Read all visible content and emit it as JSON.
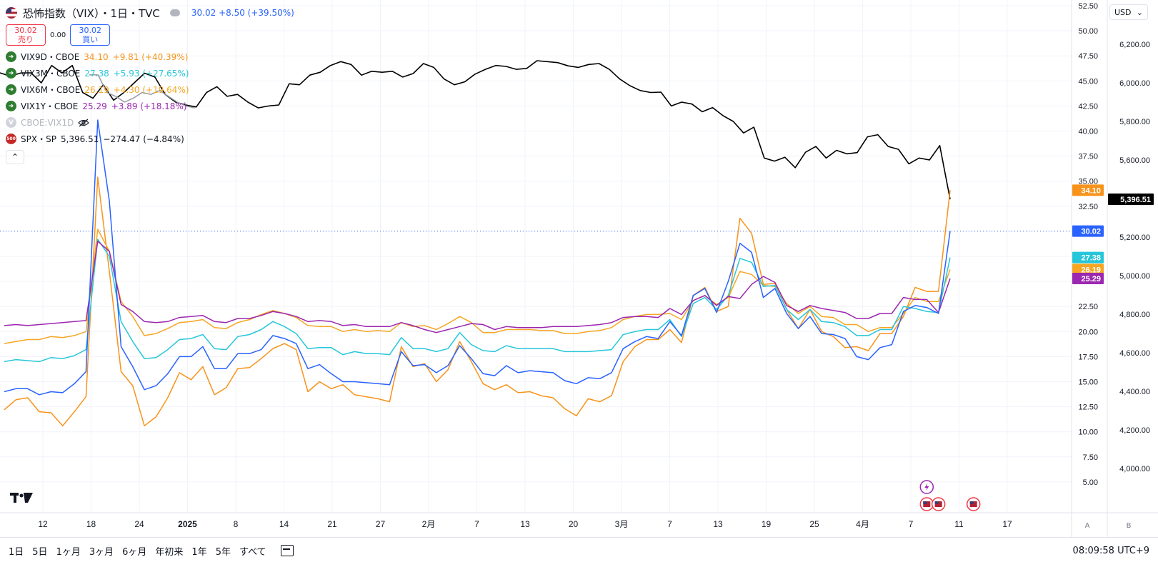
{
  "header": {
    "title": "恐怖指数（VIX）・1日・TVC",
    "last": "30.02",
    "change": "+8.50 (+39.50%)"
  },
  "trade": {
    "sell_price": "30.02",
    "sell_label": "売り",
    "spread": "0.00",
    "buy_price": "30.02",
    "buy_label": "買い"
  },
  "legend": [
    {
      "id": "vix9d",
      "badge": "➜",
      "name": "VIX9D・CBOE",
      "value": "34.10",
      "change": "+9.81 (+40.39%)",
      "color": "#f7931a"
    },
    {
      "id": "vix3m",
      "badge": "➜",
      "name": "VIX3M・CBOE",
      "value": "27.38",
      "change": "+5.93 (+27.65%)",
      "color": "#26c6da"
    },
    {
      "id": "vix6m",
      "badge": "➜",
      "name": "VIX6M・CBOE",
      "value": "26.19",
      "change": "+4.30 (+19.64%)",
      "color": "#f5a623"
    },
    {
      "id": "vix1y",
      "badge": "➜",
      "name": "VIX1Y・CBOE",
      "value": "25.29",
      "change": "+3.89 (+18.18%)",
      "color": "#9c27b0"
    },
    {
      "id": "vix1d",
      "badge": "V",
      "name": "CBOE:VIX1D",
      "value": "",
      "change": "",
      "color": "#b2b5be"
    },
    {
      "id": "spx",
      "badge": "500",
      "name": "SPX・SP",
      "value": "5,396.51",
      "change": "−274.47 (−4.84%)",
      "color": "#131722"
    }
  ],
  "currency": "USD",
  "ranges": [
    "1日",
    "5日",
    "1ヶ月",
    "3ヶ月",
    "6ヶ月",
    "年初来",
    "1年",
    "5年",
    "すべて"
  ],
  "clock": "08:09:58 UTC+9",
  "scale_buttons": {
    "a": "A",
    "b": "B"
  },
  "chart_data": {
    "type": "line",
    "x_ticks": [
      "12",
      "18",
      "24",
      "2025",
      "8",
      "14",
      "21",
      "27",
      "2月",
      "7",
      "13",
      "20",
      "3月",
      "7",
      "13",
      "19",
      "25",
      "4月",
      "7",
      "11",
      "17"
    ],
    "left_axis": {
      "ticks": [
        "52.50",
        "50.00",
        "47.50",
        "45.00",
        "42.50",
        "40.00",
        "37.50",
        "35.00",
        "32.50",
        "30.00",
        "27.50",
        "25.00",
        "22.50",
        "20.00",
        "17.50",
        "15.00",
        "12.50",
        "10.00",
        "7.50",
        "5.00"
      ],
      "range": [
        2.5,
        52.5
      ]
    },
    "right_axis": {
      "ticks": [
        "6,200.00",
        "6,000.00",
        "5,800.00",
        "5,600.00",
        "5,400.00",
        "5,200.00",
        "5,000.00",
        "4,800.00",
        "4,600.00",
        "4,400.00",
        "4,200.00",
        "4,000.00"
      ],
      "range": [
        3800,
        6400
      ]
    },
    "current_line": 30.02,
    "price_labels": [
      {
        "text": "34.10",
        "value": 34.1,
        "color": "#f7931a",
        "axis": "left"
      },
      {
        "text": "30.02",
        "value": 30.02,
        "color": "#2962ff",
        "axis": "left"
      },
      {
        "text": "27.38",
        "value": 27.38,
        "color": "#26c6da",
        "axis": "left"
      },
      {
        "text": "26.19",
        "value": 26.19,
        "color": "#f5a623",
        "axis": "left"
      },
      {
        "text": "25.29",
        "value": 25.29,
        "color": "#9c27b0",
        "axis": "left"
      },
      {
        "text": "5,396.51",
        "value": 5396.51,
        "color": "#000000",
        "axis": "right"
      }
    ],
    "series": [
      {
        "id": "spx",
        "axis": "right",
        "color": "#000000",
        "values": [
          6052,
          6034,
          6051,
          6052,
          6000,
          6090,
          6051,
          6090,
          5950,
          5920,
          5990,
          5910,
          5950,
          6000,
          6050,
          6030,
          5940,
          5900,
          5885,
          5875,
          5950,
          5980,
          5930,
          5940,
          5900,
          5870,
          5880,
          5885,
          5995,
          5990,
          6040,
          6055,
          6090,
          6110,
          6095,
          6040,
          6060,
          6055,
          6060,
          6030,
          6048,
          6100,
          6080,
          6020,
          5990,
          6005,
          6045,
          6070,
          6090,
          6085,
          6070,
          6075,
          6115,
          6110,
          6105,
          6088,
          6080,
          6095,
          6100,
          6070,
          6020,
          5985,
          5960,
          5950,
          5952,
          5880,
          5900,
          5890,
          5850,
          5872,
          5830,
          5800,
          5740,
          5770,
          5610,
          5594,
          5614,
          5560,
          5640,
          5670,
          5610,
          5650,
          5632,
          5638,
          5720,
          5731,
          5670,
          5655,
          5580,
          5610,
          5600,
          5675,
          5396
        ]
      },
      {
        "id": "vix1d",
        "axis": "right",
        "color": "#9598a1",
        "values": [
          null,
          null,
          null,
          null,
          null,
          null,
          null,
          null,
          null,
          null,
          6041,
          6041,
          5950,
          5930,
          5900,
          5920,
          5950,
          5940,
          5960,
          5930,
          5900,
          5880,
          5870
        ]
      },
      {
        "id": "vix9d",
        "axis": "left",
        "color": "#f7931a",
        "values": [
          12.2,
          13.2,
          13.4,
          12.0,
          11.9,
          10.6,
          12.0,
          13.5,
          35.4,
          26.0,
          16.0,
          14.6,
          10.6,
          11.5,
          13.4,
          15.9,
          15.2,
          16.5,
          13.7,
          14.4,
          16.3,
          16.4,
          17.3,
          18.3,
          18.8,
          18.2,
          14.0,
          15.0,
          14.3,
          14.7,
          13.7,
          13.5,
          13.3,
          13.0,
          18.5,
          16.5,
          16.8,
          15.0,
          16.2,
          19.0,
          17.0,
          14.8,
          14.2,
          14.7,
          13.9,
          14.0,
          13.6,
          13.4,
          12.3,
          11.6,
          13.3,
          13.0,
          13.6,
          17.0,
          18.5,
          19.2,
          19.2,
          20.2,
          18.9,
          23.6,
          24.4,
          22.0,
          22.5,
          31.3,
          29.8,
          24.7,
          24.8,
          22.2,
          20.3,
          22.2,
          20.0,
          19.5,
          18.4,
          18.5,
          18.1,
          19.8,
          19.8,
          21.5,
          24.4,
          24.0,
          24.0,
          34.1
        ]
      },
      {
        "id": "vix6m",
        "axis": "left",
        "color": "#f5a623",
        "values": [
          18.8,
          19.0,
          19.2,
          19.2,
          19.5,
          19.4,
          19.6,
          20.0,
          30.2,
          28.0,
          23.0,
          21.5,
          19.6,
          19.8,
          20.3,
          20.9,
          21.0,
          21.2,
          20.4,
          20.3,
          20.9,
          21.2,
          21.7,
          22.1,
          21.8,
          21.4,
          20.6,
          20.5,
          20.5,
          20.0,
          20.2,
          20.0,
          20.1,
          20.0,
          20.9,
          20.5,
          20.6,
          20.2,
          20.8,
          21.5,
          20.9,
          19.9,
          19.9,
          20.2,
          20.2,
          20.2,
          20.1,
          20.1,
          19.8,
          19.8,
          20.0,
          20.1,
          20.4,
          21.2,
          21.5,
          21.7,
          21.7,
          21.8,
          21.2,
          23.1,
          23.6,
          22.7,
          23.4,
          26.0,
          25.7,
          24.6,
          24.5,
          22.8,
          21.8,
          22.5,
          21.5,
          21.4,
          20.7,
          20.7,
          20.0,
          20.4,
          20.4,
          21.8,
          23.4,
          23.0,
          23.0,
          26.19
        ]
      },
      {
        "id": "vix3m",
        "axis": "left",
        "color": "#26c6da",
        "values": [
          17.0,
          17.2,
          17.1,
          17.0,
          17.4,
          17.3,
          17.6,
          18.2,
          29.2,
          27.5,
          21.0,
          19.0,
          17.3,
          17.4,
          18.2,
          19.2,
          19.3,
          19.7,
          18.3,
          18.2,
          19.5,
          19.7,
          20.2,
          21.0,
          20.5,
          19.8,
          18.3,
          18.4,
          18.4,
          17.7,
          18.0,
          17.8,
          17.8,
          17.7,
          19.4,
          18.3,
          18.3,
          18.0,
          18.3,
          19.9,
          18.7,
          18.1,
          18.0,
          18.6,
          18.3,
          18.3,
          18.3,
          18.3,
          18.0,
          18.0,
          18.0,
          18.1,
          18.2,
          19.7,
          20.0,
          20.2,
          20.2,
          21.2,
          19.5,
          22.8,
          23.4,
          22.2,
          23.6,
          27.3,
          26.9,
          24.5,
          24.6,
          22.2,
          21.2,
          22.2,
          21.0,
          20.9,
          20.5,
          19.6,
          19.6,
          20.2,
          20.2,
          22.5,
          22.3,
          22.0,
          21.9,
          27.38
        ]
      },
      {
        "id": "vix1y",
        "axis": "left",
        "color": "#9c27b0",
        "values": [
          20.6,
          20.7,
          20.6,
          20.7,
          20.8,
          20.9,
          21.0,
          21.1,
          29.0,
          28.0,
          22.7,
          22.0,
          21.0,
          20.9,
          21.0,
          21.4,
          21.5,
          21.6,
          21.0,
          20.9,
          21.3,
          21.3,
          21.6,
          22.0,
          21.8,
          21.5,
          21.0,
          21.1,
          21.0,
          20.6,
          20.7,
          20.5,
          20.5,
          20.5,
          20.9,
          20.6,
          20.2,
          19.9,
          20.2,
          20.5,
          20.8,
          20.7,
          20.2,
          20.5,
          20.4,
          20.4,
          20.4,
          20.5,
          20.5,
          20.5,
          20.6,
          20.7,
          20.9,
          21.4,
          21.5,
          21.5,
          21.4,
          22.3,
          21.7,
          23.1,
          23.6,
          22.6,
          23.5,
          23.3,
          24.7,
          25.5,
          24.9,
          22.6,
          22.0,
          22.6,
          22.3,
          22.1,
          21.9,
          21.3,
          21.3,
          21.8,
          21.8,
          23.4,
          23.2,
          23.2,
          21.9,
          25.29
        ]
      },
      {
        "id": "vix",
        "axis": "left",
        "color": "#2962ff",
        "values": [
          14.0,
          14.3,
          14.3,
          13.7,
          14.0,
          13.9,
          14.8,
          16.0,
          41.1,
          33.0,
          18.5,
          16.5,
          14.2,
          14.6,
          15.8,
          17.5,
          17.5,
          18.5,
          16.3,
          16.3,
          17.8,
          17.8,
          18.2,
          19.6,
          19.3,
          18.8,
          16.3,
          16.7,
          15.8,
          15.0,
          15.0,
          14.9,
          14.8,
          14.7,
          18.0,
          16.6,
          16.7,
          15.9,
          16.6,
          18.6,
          17.3,
          15.8,
          15.6,
          16.6,
          15.9,
          16.1,
          16.0,
          15.9,
          15.1,
          14.8,
          15.4,
          15.3,
          15.9,
          18.3,
          19.0,
          19.5,
          19.3,
          21.0,
          19.6,
          23.6,
          24.3,
          21.9,
          25.0,
          28.8,
          27.9,
          23.4,
          24.3,
          21.8,
          20.3,
          21.5,
          19.8,
          19.7,
          19.3,
          17.5,
          17.2,
          18.4,
          18.7,
          22.0,
          22.6,
          22.4,
          21.8,
          30.02
        ]
      }
    ],
    "markers": [
      {
        "type": "flash",
        "index": 79,
        "row": 0
      },
      {
        "type": "flag",
        "index": 79,
        "row": 1
      },
      {
        "type": "flag",
        "index": 80,
        "row": 1
      },
      {
        "type": "flag",
        "index": 83,
        "row": 1
      }
    ]
  }
}
